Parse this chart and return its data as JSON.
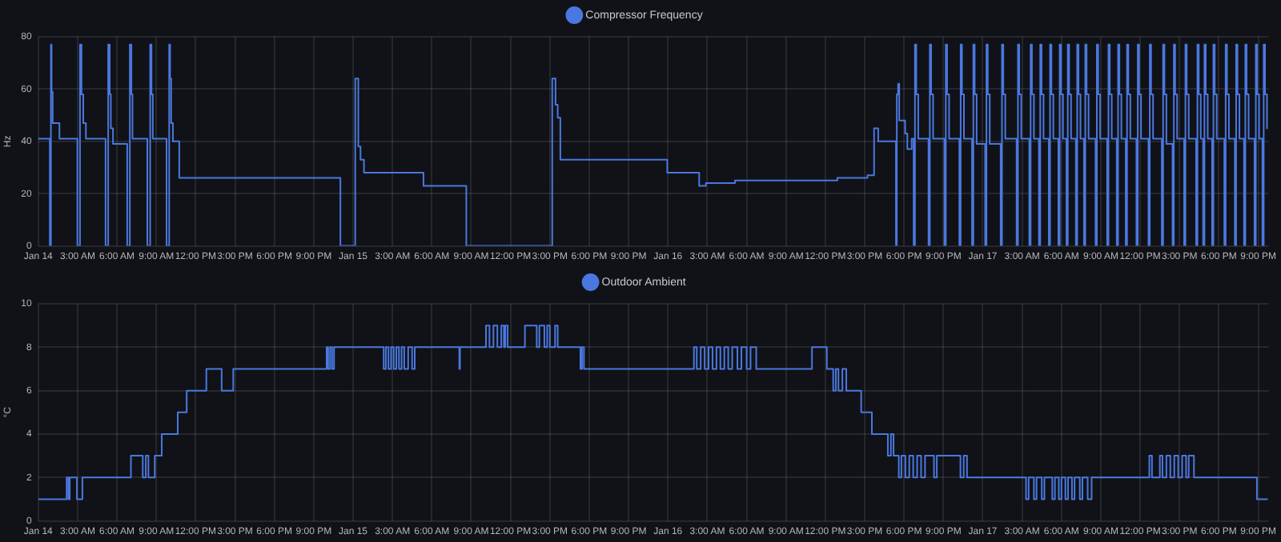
{
  "chart_data": [
    {
      "type": "step",
      "ylabel": "Hz",
      "xlim": [
        "--01-14T00:00",
        "--01-17T21:48"
      ],
      "ylim": [
        0,
        80
      ],
      "yticks": [
        0,
        20,
        40,
        60,
        80
      ],
      "xticks": [
        {
          "value": "--01-14T00:00",
          "label": "Jan 14"
        },
        {
          "value": "--01-14T03:00",
          "label": "3:00 AM"
        },
        {
          "value": "--01-14T06:00",
          "label": "6:00 AM"
        },
        {
          "value": "--01-14T09:00",
          "label": "9:00 AM"
        },
        {
          "value": "--01-14T12:00",
          "label": "12:00 PM"
        },
        {
          "value": "--01-14T15:00",
          "label": "3:00 PM"
        },
        {
          "value": "--01-14T18:00",
          "label": "6:00 PM"
        },
        {
          "value": "--01-14T21:00",
          "label": "9:00 PM"
        },
        {
          "value": "--01-15T00:00",
          "label": "Jan 15"
        },
        {
          "value": "--01-15T03:00",
          "label": "3:00 AM"
        },
        {
          "value": "--01-15T06:00",
          "label": "6:00 AM"
        },
        {
          "value": "--01-15T09:00",
          "label": "9:00 AM"
        },
        {
          "value": "--01-15T12:00",
          "label": "12:00 PM"
        },
        {
          "value": "--01-15T15:00",
          "label": "3:00 PM"
        },
        {
          "value": "--01-15T18:00",
          "label": "6:00 PM"
        },
        {
          "value": "--01-15T21:00",
          "label": "9:00 PM"
        },
        {
          "value": "--01-16T00:00",
          "label": "Jan 16"
        },
        {
          "value": "--01-16T03:00",
          "label": "3:00 AM"
        },
        {
          "value": "--01-16T06:00",
          "label": "6:00 AM"
        },
        {
          "value": "--01-16T09:00",
          "label": "9:00 AM"
        },
        {
          "value": "--01-16T12:00",
          "label": "12:00 PM"
        },
        {
          "value": "--01-16T15:00",
          "label": "3:00 PM"
        },
        {
          "value": "--01-16T18:00",
          "label": "6:00 PM"
        },
        {
          "value": "--01-16T21:00",
          "label": "9:00 PM"
        },
        {
          "value": "--01-17T00:00",
          "label": "Jan 17"
        },
        {
          "value": "--01-17T03:00",
          "label": "3:00 AM"
        },
        {
          "value": "--01-17T06:00",
          "label": "6:00 AM"
        },
        {
          "value": "--01-17T09:00",
          "label": "9:00 AM"
        },
        {
          "value": "--01-17T12:00",
          "label": "12:00 PM"
        },
        {
          "value": "--01-17T15:00",
          "label": "3:00 PM"
        },
        {
          "value": "--01-17T18:00",
          "label": "6:00 PM"
        },
        {
          "value": "--01-17T21:00",
          "label": "9:00 PM"
        }
      ],
      "grid": true,
      "legend": "top",
      "marker": "none",
      "series": [
        {
          "name": "Compressor Frequency",
          "color": "#4a78e0",
          "x": [
            "--01-14T00:00",
            "--01-14T00:53",
            "--01-14T00:58",
            "--01-14T01:01",
            "--01-14T01:06",
            "--01-14T01:37",
            "--01-14T02:59",
            "--01-14T03:11",
            "--01-14T03:18",
            "--01-14T03:26",
            "--01-14T03:38",
            "--01-14T05:08",
            "--01-14T05:20",
            "--01-14T05:27",
            "--01-14T05:32",
            "--01-14T05:42",
            "--01-14T06:47",
            "--01-14T06:59",
            "--01-14T07:06",
            "--01-14T07:11",
            "--01-14T08:19",
            "--01-14T08:32",
            "--01-14T08:38",
            "--01-14T08:44",
            "--01-14T09:47",
            "--01-14T09:59",
            "--01-14T10:03",
            "--01-14T10:08",
            "--01-14T10:16",
            "--01-14T10:45",
            "--01-14T23:02",
            "--01-15T00:10",
            "--01-15T00:24",
            "--01-15T00:34",
            "--01-15T00:50",
            "--01-15T05:22",
            "--01-15T08:38",
            "--01-15T15:11",
            "--01-15T15:26",
            "--01-15T15:36",
            "--01-15T15:48",
            "--01-15T23:57",
            "--01-16T02:23",
            "--01-16T02:54",
            "--01-16T05:07",
            "--01-16T12:55",
            "--01-16T15:13",
            "--01-16T15:43",
            "--01-16T16:02",
            "--01-16T17:23",
            "--01-16T17:27",
            "--01-16T17:33",
            "--01-16T17:38",
            "--01-16T18:05",
            "--01-16T18:15",
            "--01-16T18:35",
            "--01-16T18:44",
            "--01-16T18:50",
            "--01-16T18:56",
            "--01-16T19:05",
            "--01-16T19:52",
            "--01-16T19:58",
            "--01-16T20:04",
            "--01-16T20:13",
            "--01-16T21:05",
            "--01-16T21:11",
            "--01-16T21:17",
            "--01-16T21:26",
            "--01-16T22:13",
            "--01-16T22:19",
            "--01-16T22:25",
            "--01-16T22:34",
            "--01-16T23:11",
            "--01-16T23:17",
            "--01-16T23:23",
            "--01-16T23:32",
            "--01-17T00:11",
            "--01-17T00:17",
            "--01-17T00:23",
            "--01-17T00:32",
            "--01-17T01:22",
            "--01-17T01:28",
            "--01-17T01:34",
            "--01-17T01:43",
            "--01-17T02:35",
            "--01-17T02:41",
            "--01-17T02:47",
            "--01-17T02:56",
            "--01-17T03:33",
            "--01-17T03:39",
            "--01-17T03:45",
            "--01-17T03:54",
            "--01-17T04:17",
            "--01-17T04:23",
            "--01-17T04:29",
            "--01-17T04:38",
            "--01-17T05:02",
            "--01-17T05:08",
            "--01-17T05:14",
            "--01-17T05:23",
            "--01-17T05:46",
            "--01-17T05:52",
            "--01-17T05:58",
            "--01-17T06:07",
            "--01-17T06:23",
            "--01-17T06:29",
            "--01-17T06:35",
            "--01-17T06:44",
            "--01-17T07:06",
            "--01-17T07:12",
            "--01-17T07:18",
            "--01-17T07:27",
            "--01-17T07:43",
            "--01-17T07:49",
            "--01-17T07:55",
            "--01-17T08:04",
            "--01-17T08:36",
            "--01-17T08:42",
            "--01-17T08:48",
            "--01-17T08:57",
            "--01-17T09:29",
            "--01-17T09:35",
            "--01-17T09:41",
            "--01-17T09:50",
            "--01-17T10:13",
            "--01-17T10:19",
            "--01-17T10:25",
            "--01-17T10:34",
            "--01-17T10:54",
            "--01-17T11:00",
            "--01-17T11:06",
            "--01-17T11:15",
            "--01-17T11:43",
            "--01-17T11:49",
            "--01-17T11:55",
            "--01-17T12:04",
            "--01-17T12:38",
            "--01-17T12:44",
            "--01-17T12:50",
            "--01-17T12:59",
            "--01-17T13:39",
            "--01-17T13:45",
            "--01-17T13:51",
            "--01-17T14:00",
            "--01-17T14:28",
            "--01-17T14:34",
            "--01-17T14:40",
            "--01-17T14:49",
            "--01-17T15:21",
            "--01-17T15:27",
            "--01-17T15:33",
            "--01-17T15:42",
            "--01-17T16:16",
            "--01-17T16:22",
            "--01-17T16:28",
            "--01-17T16:37",
            "--01-17T16:48",
            "--01-17T16:54",
            "--01-17T17:00",
            "--01-17T17:09",
            "--01-17T17:29",
            "--01-17T17:35",
            "--01-17T17:41",
            "--01-17T17:50",
            "--01-17T18:25",
            "--01-17T18:31",
            "--01-17T18:37",
            "--01-17T18:46",
            "--01-17T19:13",
            "--01-17T19:19",
            "--01-17T19:25",
            "--01-17T19:34",
            "--01-17T19:55",
            "--01-17T20:01",
            "--01-17T20:07",
            "--01-17T20:16",
            "--01-17T20:43",
            "--01-17T20:49",
            "--01-17T20:55",
            "--01-17T21:04",
            "--01-17T21:19",
            "--01-17T21:25",
            "--01-17T21:31",
            "--01-17T21:40",
            "--01-17T21:44"
          ],
          "values": [
            41,
            0,
            77,
            59,
            47,
            41,
            0,
            77,
            58,
            47,
            41,
            0,
            77,
            58,
            45,
            39,
            0,
            77,
            58,
            41,
            0,
            77,
            58,
            41,
            0,
            77,
            64,
            47,
            40,
            26,
            0,
            64,
            38,
            33,
            28,
            23,
            0,
            64,
            54,
            49,
            33,
            28,
            23,
            24,
            25,
            26,
            27,
            45,
            40,
            0,
            58,
            62,
            48,
            43,
            37,
            41,
            0,
            77,
            58,
            41,
            0,
            77,
            58,
            41,
            0,
            77,
            58,
            41,
            0,
            77,
            58,
            41,
            0,
            77,
            58,
            39,
            0,
            77,
            58,
            39,
            0,
            77,
            58,
            41,
            0,
            77,
            58,
            41,
            0,
            77,
            58,
            41,
            0,
            77,
            58,
            41,
            0,
            77,
            58,
            41,
            0,
            77,
            58,
            41,
            0,
            77,
            58,
            41,
            0,
            77,
            58,
            41,
            0,
            77,
            58,
            41,
            0,
            77,
            58,
            41,
            0,
            77,
            58,
            41,
            0,
            77,
            58,
            41,
            0,
            77,
            58,
            41,
            0,
            77,
            58,
            41,
            0,
            77,
            58,
            41,
            0,
            77,
            58,
            39,
            0,
            77,
            58,
            41,
            0,
            77,
            58,
            41,
            0,
            77,
            58,
            41,
            0,
            77,
            58,
            41,
            0,
            77,
            58,
            41,
            0,
            77,
            58,
            41,
            0,
            77,
            58,
            41,
            0,
            77,
            58,
            41,
            0,
            77,
            58,
            41,
            0,
            77,
            58,
            45,
            45
          ]
        }
      ]
    },
    {
      "type": "step",
      "ylabel": "°C",
      "xlim": [
        "--01-14T00:00",
        "--01-17T21:48"
      ],
      "ylim": [
        0,
        10
      ],
      "yticks": [
        0,
        2,
        4,
        6,
        8,
        10
      ],
      "xticks": [
        {
          "value": "--01-14T00:00",
          "label": "Jan 14"
        },
        {
          "value": "--01-14T03:00",
          "label": "3:00 AM"
        },
        {
          "value": "--01-14T06:00",
          "label": "6:00 AM"
        },
        {
          "value": "--01-14T09:00",
          "label": "9:00 AM"
        },
        {
          "value": "--01-14T12:00",
          "label": "12:00 PM"
        },
        {
          "value": "--01-14T15:00",
          "label": "3:00 PM"
        },
        {
          "value": "--01-14T18:00",
          "label": "6:00 PM"
        },
        {
          "value": "--01-14T21:00",
          "label": "9:00 PM"
        },
        {
          "value": "--01-15T00:00",
          "label": "Jan 15"
        },
        {
          "value": "--01-15T03:00",
          "label": "3:00 AM"
        },
        {
          "value": "--01-15T06:00",
          "label": "6:00 AM"
        },
        {
          "value": "--01-15T09:00",
          "label": "9:00 AM"
        },
        {
          "value": "--01-15T12:00",
          "label": "12:00 PM"
        },
        {
          "value": "--01-15T15:00",
          "label": "3:00 PM"
        },
        {
          "value": "--01-15T18:00",
          "label": "6:00 PM"
        },
        {
          "value": "--01-15T21:00",
          "label": "9:00 PM"
        },
        {
          "value": "--01-16T00:00",
          "label": "Jan 16"
        },
        {
          "value": "--01-16T03:00",
          "label": "3:00 AM"
        },
        {
          "value": "--01-16T06:00",
          "label": "6:00 AM"
        },
        {
          "value": "--01-16T09:00",
          "label": "9:00 AM"
        },
        {
          "value": "--01-16T12:00",
          "label": "12:00 PM"
        },
        {
          "value": "--01-16T15:00",
          "label": "3:00 PM"
        },
        {
          "value": "--01-16T18:00",
          "label": "6:00 PM"
        },
        {
          "value": "--01-16T21:00",
          "label": "9:00 PM"
        },
        {
          "value": "--01-17T00:00",
          "label": "Jan 17"
        },
        {
          "value": "--01-17T03:00",
          "label": "3:00 AM"
        },
        {
          "value": "--01-17T06:00",
          "label": "6:00 AM"
        },
        {
          "value": "--01-17T09:00",
          "label": "9:00 AM"
        },
        {
          "value": "--01-17T12:00",
          "label": "12:00 PM"
        },
        {
          "value": "--01-17T15:00",
          "label": "3:00 PM"
        },
        {
          "value": "--01-17T18:00",
          "label": "6:00 PM"
        },
        {
          "value": "--01-17T21:00",
          "label": "9:00 PM"
        }
      ],
      "grid": true,
      "legend": "top",
      "marker": "none",
      "series": [
        {
          "name": "Outdoor Ambient",
          "color": "#4a78e0",
          "x": [
            "--01-14T00:00",
            "--01-14T02:10",
            "--01-14T02:18",
            "--01-14T02:24",
            "--01-14T02:57",
            "--01-14T03:22",
            "--01-14T07:04",
            "--01-14T07:58",
            "--01-14T08:12",
            "--01-14T08:24",
            "--01-14T08:53",
            "--01-14T09:25",
            "--01-14T10:38",
            "--01-14T11:19",
            "--01-14T12:49",
            "--01-14T13:59",
            "--01-14T14:52",
            "--01-14T21:59",
            "--01-14T22:06",
            "--01-14T22:15",
            "--01-14T22:24",
            "--01-14T22:33",
            "--01-15T02:20",
            "--01-15T02:30",
            "--01-15T02:42",
            "--01-15T02:54",
            "--01-15T03:06",
            "--01-15T03:18",
            "--01-15T03:30",
            "--01-15T03:42",
            "--01-15T03:54",
            "--01-15T04:12",
            "--01-15T04:30",
            "--01-15T04:42",
            "--01-15T08:06",
            "--01-15T08:09",
            "--01-15T10:08",
            "--01-15T10:24",
            "--01-15T10:42",
            "--01-15T11:00",
            "--01-15T11:18",
            "--01-15T11:30",
            "--01-15T11:36",
            "--01-15T11:47",
            "--01-15T13:06",
            "--01-15T14:00",
            "--01-15T14:12",
            "--01-15T14:35",
            "--01-15T14:48",
            "--01-15T15:00",
            "--01-15T15:24",
            "--01-15T15:36",
            "--01-15T17:20",
            "--01-15T17:27",
            "--01-15T17:36",
            "--01-16T01:59",
            "--01-16T02:12",
            "--01-16T02:30",
            "--01-16T02:48",
            "--01-16T03:06",
            "--01-16T03:24",
            "--01-16T03:42",
            "--01-16T04:00",
            "--01-16T04:18",
            "--01-16T04:36",
            "--01-16T04:54",
            "--01-16T05:18",
            "--01-16T05:36",
            "--01-16T06:00",
            "--01-16T06:18",
            "--01-16T06:44",
            "--01-16T10:59",
            "--01-16T12:07",
            "--01-16T12:36",
            "--01-16T12:48",
            "--01-16T13:00",
            "--01-16T13:18",
            "--01-16T13:36",
            "--01-16T14:44",
            "--01-16T15:33",
            "--01-16T16:46",
            "--01-16T17:00",
            "--01-16T17:12",
            "--01-16T17:36",
            "--01-16T17:48",
            "--01-16T18:06",
            "--01-16T18:24",
            "--01-16T18:42",
            "--01-16T19:00",
            "--01-16T19:18",
            "--01-16T19:36",
            "--01-16T20:17",
            "--01-16T20:30",
            "--01-16T22:18",
            "--01-16T22:33",
            "--01-16T22:48",
            "--01-17T03:18",
            "--01-17T03:30",
            "--01-17T03:54",
            "--01-17T04:06",
            "--01-17T04:30",
            "--01-17T04:42",
            "--01-17T05:18",
            "--01-17T05:30",
            "--01-17T05:48",
            "--01-17T06:00",
            "--01-17T06:18",
            "--01-17T06:30",
            "--01-17T06:48",
            "--01-17T07:00",
            "--01-17T07:24",
            "--01-17T07:36",
            "--01-17T08:00",
            "--01-17T08:18",
            "--01-17T12:42",
            "--01-17T12:54",
            "--01-17T13:30",
            "--01-17T13:42",
            "--01-17T14:00",
            "--01-17T14:18",
            "--01-17T14:36",
            "--01-17T14:54",
            "--01-17T15:12",
            "--01-17T15:30",
            "--01-17T15:42",
            "--01-17T16:06",
            "--01-17T20:54",
            "--01-17T21:44"
          ],
          "values": [
            1,
            2,
            1,
            2,
            1,
            2,
            3,
            2,
            3,
            2,
            3,
            4,
            5,
            6,
            7,
            6,
            7,
            8,
            7,
            8,
            7,
            8,
            7,
            8,
            7,
            8,
            7,
            8,
            7,
            8,
            7,
            8,
            7,
            8,
            7,
            8,
            9,
            8,
            9,
            8,
            9,
            8,
            9,
            8,
            9,
            8,
            9,
            8,
            9,
            8,
            9,
            8,
            7,
            8,
            7,
            8,
            7,
            8,
            7,
            8,
            7,
            8,
            7,
            8,
            7,
            8,
            7,
            8,
            7,
            8,
            7,
            8,
            7,
            6,
            7,
            6,
            7,
            6,
            5,
            4,
            3,
            4,
            3,
            2,
            3,
            2,
            3,
            2,
            3,
            2,
            3,
            2,
            3,
            2,
            3,
            2,
            1,
            2,
            1,
            2,
            1,
            2,
            1,
            2,
            1,
            2,
            1,
            2,
            1,
            2,
            1,
            2,
            1,
            2,
            3,
            2,
            3,
            2,
            3,
            2,
            3,
            2,
            3,
            2,
            3,
            2,
            1,
            1
          ]
        }
      ]
    }
  ]
}
